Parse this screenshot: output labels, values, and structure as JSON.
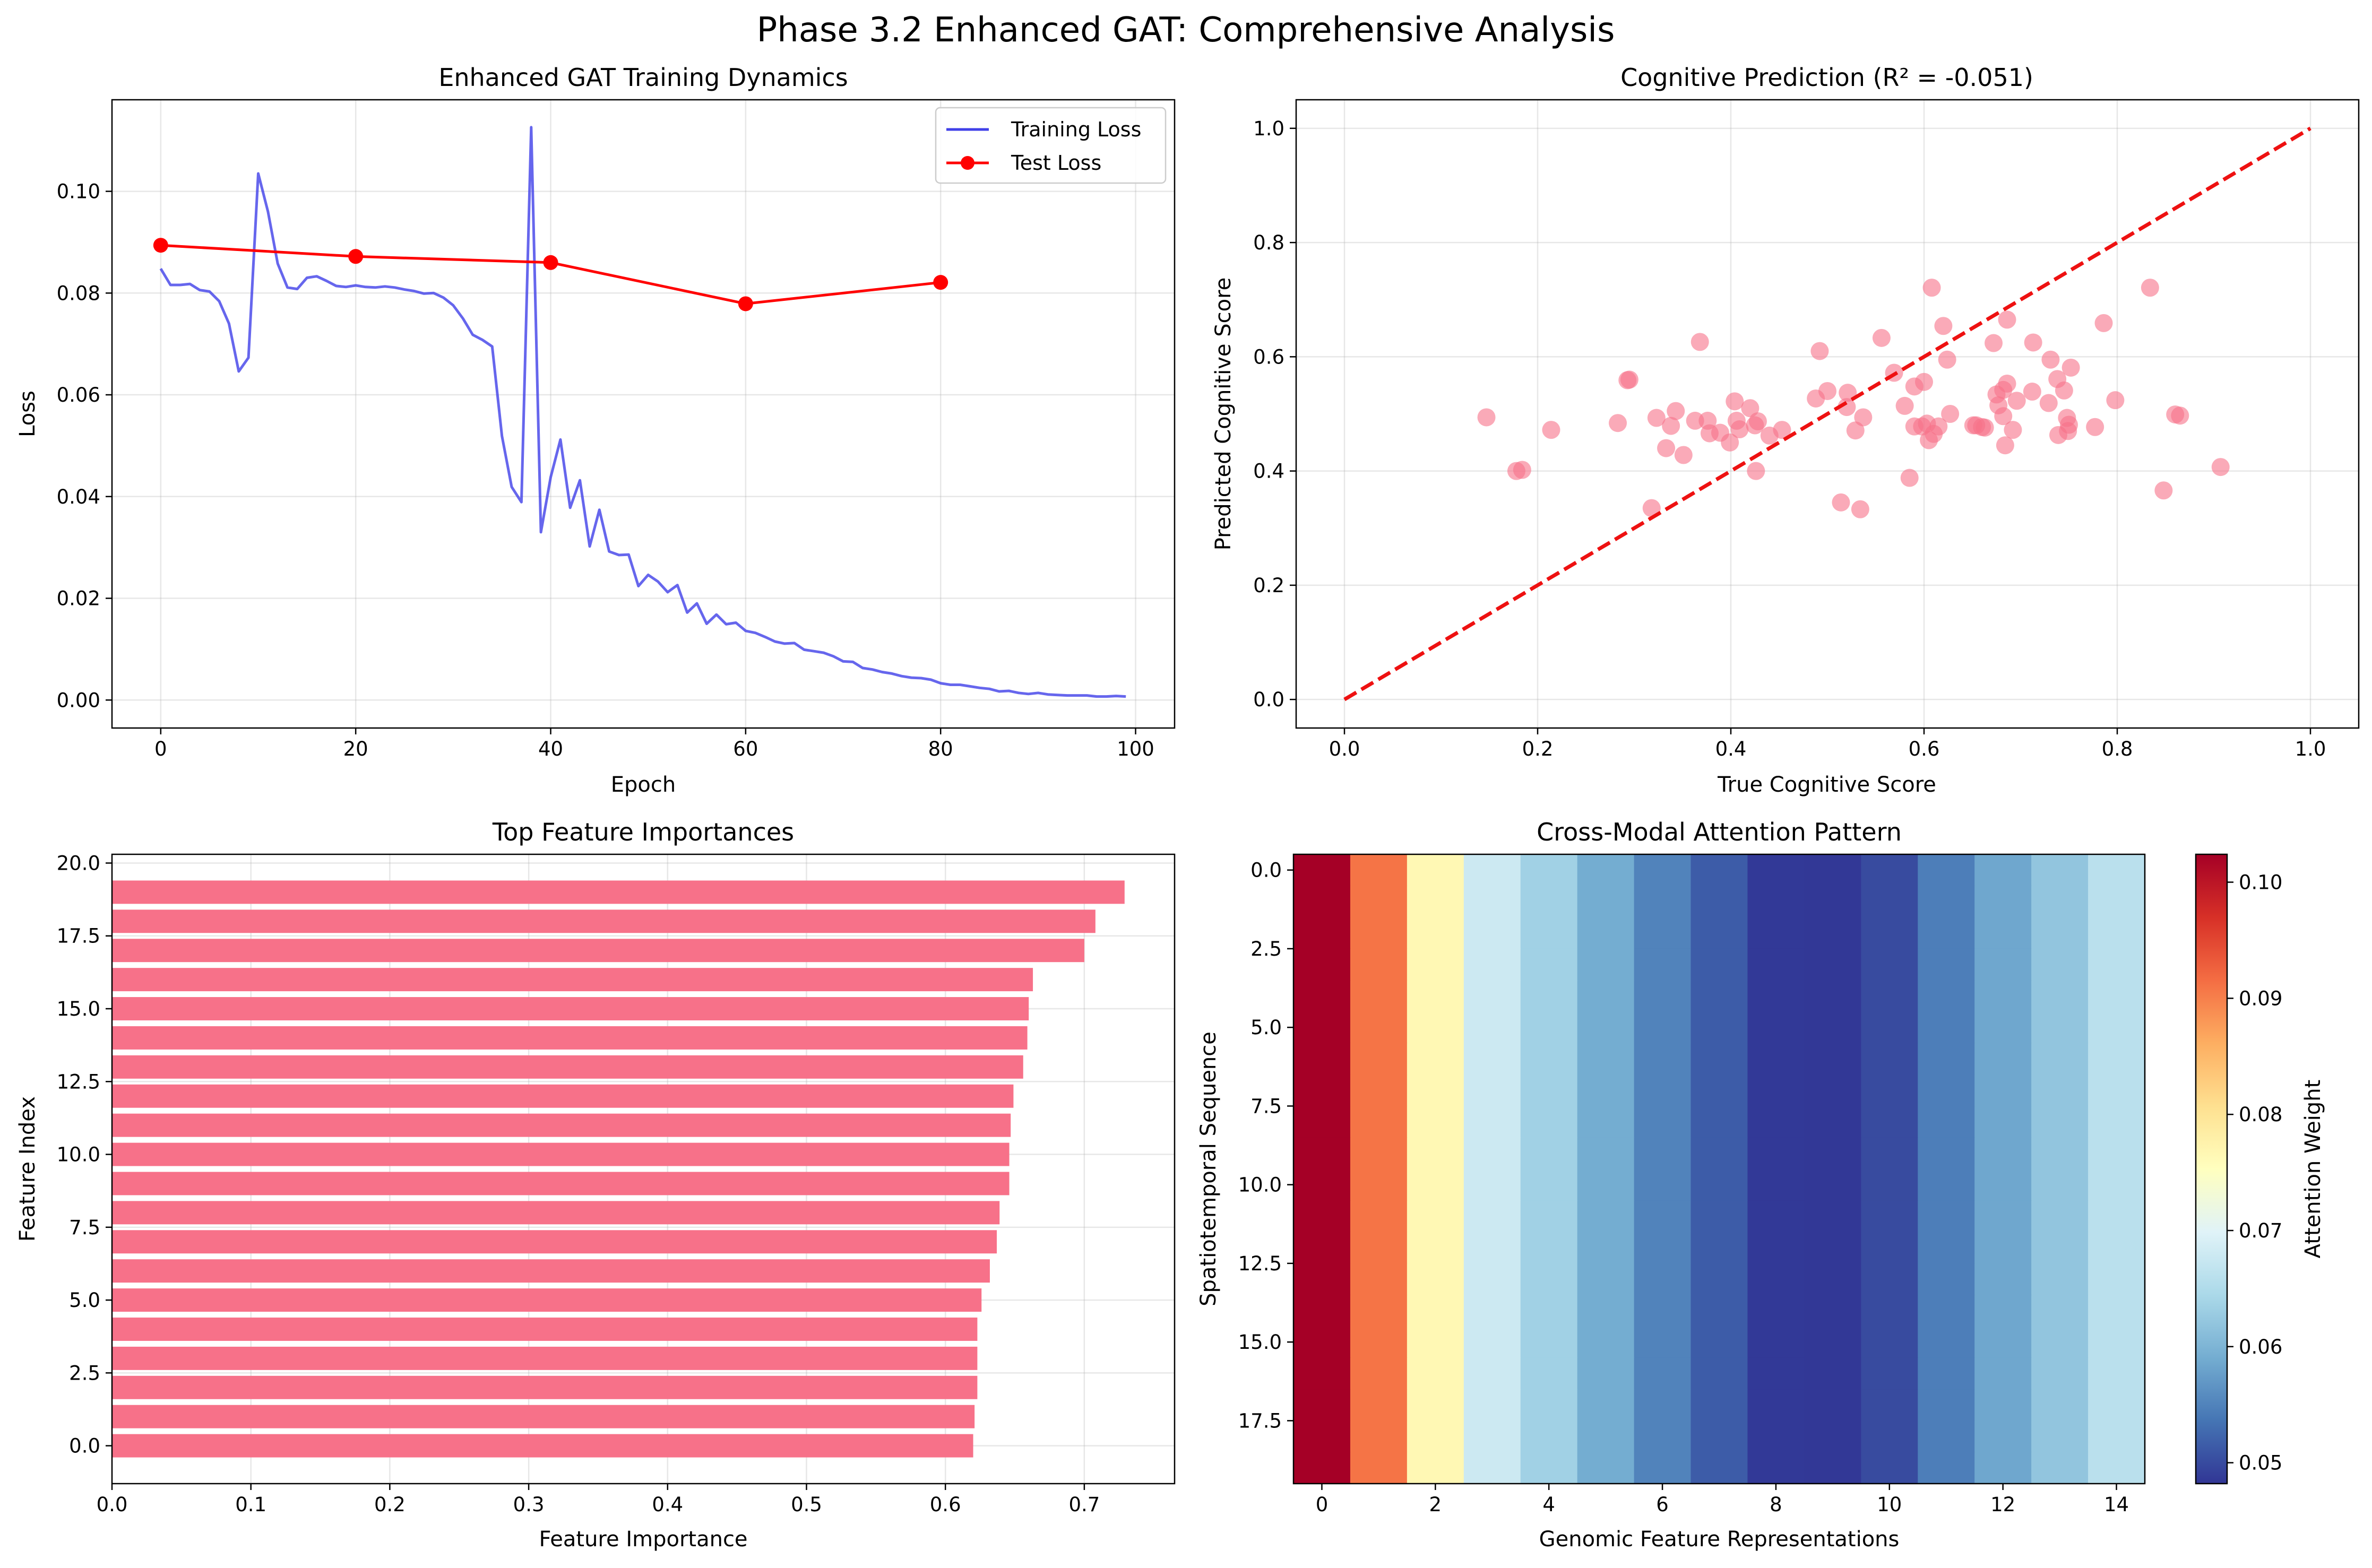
{
  "figure": {
    "title": "Phase 3.2 Enhanced GAT: Comprehensive Analysis"
  },
  "chart_data": [
    {
      "type": "line",
      "title": "Enhanced GAT Training Dynamics",
      "xlabel": "Epoch",
      "ylabel": "Loss",
      "xlim": [
        -5,
        104
      ],
      "ylim": [
        -0.0055,
        0.118
      ],
      "xticks": [
        0,
        20,
        40,
        60,
        80,
        100
      ],
      "xtick_labels": [
        "0",
        "20",
        "40",
        "60",
        "80",
        "100"
      ],
      "yticks": [
        0,
        0.02,
        0.04,
        0.06,
        0.08,
        0.1
      ],
      "ytick_labels": [
        "0.00",
        "0.02",
        "0.04",
        "0.06",
        "0.08",
        "0.10"
      ],
      "grid": true,
      "legend": "top-right",
      "series": [
        {
          "name": "Training Loss",
          "color": "#4040e8",
          "marker": "none",
          "x": [
            0,
            1,
            2,
            3,
            4,
            5,
            6,
            7,
            8,
            9,
            10,
            11,
            12,
            13,
            14,
            15,
            16,
            17,
            18,
            19,
            20,
            21,
            22,
            23,
            24,
            25,
            26,
            27,
            28,
            29,
            30,
            31,
            32,
            33,
            34,
            35,
            36,
            37,
            38,
            39,
            40,
            41,
            42,
            43,
            44,
            45,
            46,
            47,
            48,
            49,
            50,
            51,
            52,
            53,
            54,
            55,
            56,
            57,
            58,
            59,
            60,
            61,
            62,
            63,
            64,
            65,
            66,
            67,
            68,
            69,
            70,
            71,
            72,
            73,
            74,
            75,
            76,
            77,
            78,
            79,
            80,
            81,
            82,
            83,
            84,
            85,
            86,
            87,
            88,
            89,
            90,
            91,
            92,
            93,
            94,
            95,
            96,
            97,
            98,
            99
          ],
          "values": [
            0.0848,
            0.0816,
            0.0816,
            0.0818,
            0.0806,
            0.0803,
            0.0784,
            0.074,
            0.0646,
            0.0673,
            0.1035,
            0.096,
            0.0858,
            0.0811,
            0.0808,
            0.083,
            0.0833,
            0.0824,
            0.0814,
            0.0812,
            0.0815,
            0.0812,
            0.0811,
            0.0813,
            0.0811,
            0.0807,
            0.0804,
            0.0799,
            0.08,
            0.0791,
            0.0776,
            0.075,
            0.0718,
            0.0708,
            0.0695,
            0.0519,
            0.0419,
            0.0389,
            0.1126,
            0.033,
            0.0438,
            0.0512,
            0.0378,
            0.0432,
            0.0302,
            0.0374,
            0.0292,
            0.0285,
            0.0286,
            0.0224,
            0.0246,
            0.0233,
            0.0212,
            0.0226,
            0.0172,
            0.019,
            0.015,
            0.0168,
            0.0149,
            0.0152,
            0.0136,
            0.0132,
            0.0124,
            0.0115,
            0.0111,
            0.0112,
            0.0099,
            0.0096,
            0.0093,
            0.0086,
            0.0076,
            0.0075,
            0.0063,
            0.006,
            0.0055,
            0.0052,
            0.0047,
            0.0044,
            0.0043,
            0.004,
            0.0033,
            0.003,
            0.003,
            0.0027,
            0.0024,
            0.0022,
            0.0017,
            0.0018,
            0.0014,
            0.0012,
            0.0014,
            0.0011,
            0.001,
            0.0009,
            0.0009,
            0.0009,
            0.0007,
            0.0007,
            0.0008,
            0.0007
          ]
        },
        {
          "name": "Test Loss",
          "color": "#ff0000",
          "marker": "circle",
          "x": [
            0,
            20,
            40,
            60,
            80
          ],
          "values": [
            0.0894,
            0.0872,
            0.086,
            0.0779,
            0.0821
          ]
        }
      ]
    },
    {
      "type": "scatter",
      "title": "Cognitive Prediction (R² = -0.051)",
      "xlabel": "True Cognitive Score",
      "ylabel": "Predicted Cognitive Score",
      "xlim": [
        -0.05,
        1.05
      ],
      "ylim": [
        -0.05,
        1.05
      ],
      "xticks": [
        0,
        0.2,
        0.4,
        0.6,
        0.8,
        1.0
      ],
      "xtick_labels": [
        "0.0",
        "0.2",
        "0.4",
        "0.6",
        "0.8",
        "1.0"
      ],
      "yticks": [
        0,
        0.2,
        0.4,
        0.6,
        0.8,
        1.0
      ],
      "ytick_labels": [
        "0.0",
        "0.2",
        "0.4",
        "0.6",
        "0.8",
        "1.0"
      ],
      "grid": true,
      "point_color": "#f77189",
      "reference_line": {
        "x": [
          0,
          1
        ],
        "y": [
          0,
          1
        ],
        "color": "#ee1111",
        "style": "dashed"
      },
      "points": [
        [
          0.147,
          0.494
        ],
        [
          0.178,
          0.4
        ],
        [
          0.184,
          0.402
        ],
        [
          0.214,
          0.472
        ],
        [
          0.283,
          0.484
        ],
        [
          0.293,
          0.559
        ],
        [
          0.295,
          0.56
        ],
        [
          0.318,
          0.335
        ],
        [
          0.323,
          0.493
        ],
        [
          0.333,
          0.44
        ],
        [
          0.338,
          0.479
        ],
        [
          0.343,
          0.505
        ],
        [
          0.351,
          0.428
        ],
        [
          0.363,
          0.488
        ],
        [
          0.368,
          0.626
        ],
        [
          0.376,
          0.488
        ],
        [
          0.378,
          0.466
        ],
        [
          0.389,
          0.467
        ],
        [
          0.399,
          0.45
        ],
        [
          0.404,
          0.522
        ],
        [
          0.406,
          0.488
        ],
        [
          0.409,
          0.473
        ],
        [
          0.42,
          0.51
        ],
        [
          0.425,
          0.48
        ],
        [
          0.426,
          0.4
        ],
        [
          0.428,
          0.487
        ],
        [
          0.44,
          0.462
        ],
        [
          0.453,
          0.472
        ],
        [
          0.488,
          0.527
        ],
        [
          0.492,
          0.61
        ],
        [
          0.5,
          0.54
        ],
        [
          0.514,
          0.345
        ],
        [
          0.52,
          0.512
        ],
        [
          0.521,
          0.537
        ],
        [
          0.529,
          0.471
        ],
        [
          0.534,
          0.333
        ],
        [
          0.537,
          0.494
        ],
        [
          0.556,
          0.633
        ],
        [
          0.569,
          0.572
        ],
        [
          0.58,
          0.514
        ],
        [
          0.585,
          0.388
        ],
        [
          0.59,
          0.548
        ],
        [
          0.59,
          0.478
        ],
        [
          0.598,
          0.478
        ],
        [
          0.6,
          0.556
        ],
        [
          0.603,
          0.483
        ],
        [
          0.605,
          0.454
        ],
        [
          0.608,
          0.721
        ],
        [
          0.61,
          0.465
        ],
        [
          0.615,
          0.478
        ],
        [
          0.62,
          0.654
        ],
        [
          0.624,
          0.595
        ],
        [
          0.627,
          0.5
        ],
        [
          0.651,
          0.48
        ],
        [
          0.654,
          0.48
        ],
        [
          0.66,
          0.477
        ],
        [
          0.663,
          0.476
        ],
        [
          0.672,
          0.624
        ],
        [
          0.675,
          0.534
        ],
        [
          0.677,
          0.515
        ],
        [
          0.682,
          0.542
        ],
        [
          0.682,
          0.496
        ],
        [
          0.684,
          0.445
        ],
        [
          0.686,
          0.553
        ],
        [
          0.686,
          0.665
        ],
        [
          0.692,
          0.472
        ],
        [
          0.696,
          0.523
        ],
        [
          0.712,
          0.539
        ],
        [
          0.713,
          0.625
        ],
        [
          0.729,
          0.519
        ],
        [
          0.731,
          0.595
        ],
        [
          0.738,
          0.561
        ],
        [
          0.739,
          0.463
        ],
        [
          0.745,
          0.541
        ],
        [
          0.748,
          0.493
        ],
        [
          0.749,
          0.47
        ],
        [
          0.75,
          0.481
        ],
        [
          0.752,
          0.581
        ],
        [
          0.777,
          0.477
        ],
        [
          0.786,
          0.659
        ],
        [
          0.798,
          0.524
        ],
        [
          0.834,
          0.721
        ],
        [
          0.848,
          0.366
        ],
        [
          0.86,
          0.499
        ],
        [
          0.865,
          0.497
        ],
        [
          0.907,
          0.407
        ]
      ]
    },
    {
      "type": "bar",
      "orientation": "horizontal",
      "title": "Top Feature Importances",
      "xlabel": "Feature Importance",
      "ylabel": "Feature Index",
      "xlim": [
        0,
        0.765
      ],
      "ylim": [
        -1.3,
        20.3
      ],
      "xticks": [
        0,
        0.1,
        0.2,
        0.3,
        0.4,
        0.5,
        0.6,
        0.7
      ],
      "xtick_labels": [
        "0.0",
        "0.1",
        "0.2",
        "0.3",
        "0.4",
        "0.5",
        "0.6",
        "0.7"
      ],
      "yticks": [
        0,
        2.5,
        5,
        7.5,
        10,
        12.5,
        15,
        17.5,
        20
      ],
      "ytick_labels": [
        "0.0",
        "2.5",
        "5.0",
        "7.5",
        "10.0",
        "12.5",
        "15.0",
        "17.5",
        "20.0"
      ],
      "grid": true,
      "bar_color": "#f77189",
      "categories": [
        0,
        1,
        2,
        3,
        4,
        5,
        6,
        7,
        8,
        9,
        10,
        11,
        12,
        13,
        14,
        15,
        16,
        17,
        18,
        19
      ],
      "values": [
        0.62,
        0.621,
        0.623,
        0.623,
        0.623,
        0.626,
        0.632,
        0.637,
        0.639,
        0.646,
        0.646,
        0.647,
        0.649,
        0.656,
        0.659,
        0.66,
        0.663,
        0.7,
        0.708,
        0.729
      ]
    },
    {
      "type": "heatmap",
      "title": "Cross-Modal Attention Pattern",
      "xlabel": "Genomic Feature Representations",
      "ylabel": "Spatiotemporal Sequence",
      "xticks": [
        0,
        2,
        4,
        6,
        8,
        10,
        12,
        14
      ],
      "xtick_labels": [
        "0",
        "2",
        "4",
        "6",
        "8",
        "10",
        "12",
        "14"
      ],
      "yticks": [
        0,
        2.5,
        5,
        7.5,
        10,
        12.5,
        15,
        17.5
      ],
      "ytick_labels": [
        "0.0",
        "2.5",
        "5.0",
        "7.5",
        "10.0",
        "12.5",
        "15.0",
        "17.5"
      ],
      "rows": 20,
      "colormap": "RdYlBu_r",
      "colorbar": {
        "label": "Attention Weight",
        "vmin": 0.0482,
        "vmax": 0.1024,
        "ticks": [
          0.05,
          0.06,
          0.07,
          0.08,
          0.09,
          0.1
        ],
        "tick_labels": [
          "0.05",
          "0.06",
          "0.07",
          "0.08",
          "0.09",
          "0.10"
        ]
      },
      "column_values": [
        0.1024,
        0.091,
        0.0766,
        0.0678,
        0.0635,
        0.059,
        0.055,
        0.0515,
        0.0485,
        0.0484,
        0.05,
        0.0545,
        0.0585,
        0.062,
        0.066
      ]
    }
  ]
}
